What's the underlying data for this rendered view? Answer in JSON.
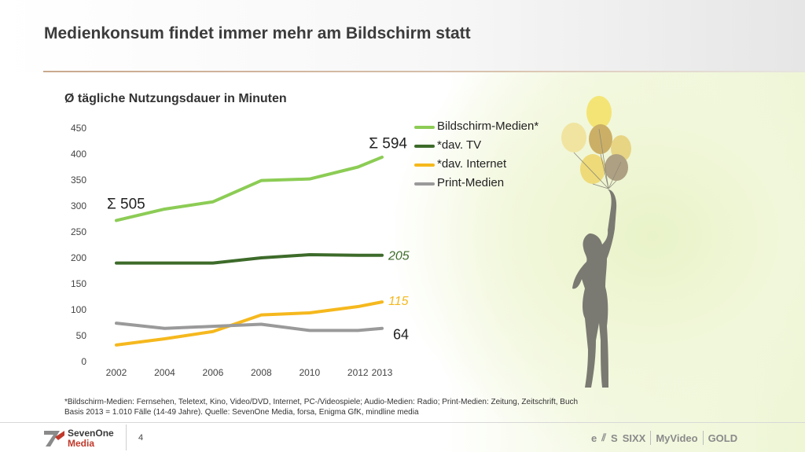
{
  "page": {
    "title": "Medienkonsum findet immer mehr am Bildschirm statt",
    "subtitle": "Ø tägliche Nutzungsdauer in Minuten",
    "footnote_line1": "*Bildschirm-Medien: Fernsehen, Teletext, Kino, Video/DVD, Internet, PC-/Videospiele; Audio-Medien: Radio; Print-Medien: Zeitung, Zeitschrift, Buch",
    "footnote_line2": "Basis 2013 = 1.010 Fälle (14-49 Jahre). Quelle: SevenOne Media, forsa, Enigma GfK, mindline media",
    "page_number": "4"
  },
  "footer": {
    "logo_line1": "SevenOne",
    "logo_line2": "Media",
    "brands": [
      "e",
      "⫽",
      "S",
      "SIXX",
      "MyVideo",
      "GOLD"
    ]
  },
  "chart_data": {
    "type": "line",
    "title": "Ø tägliche Nutzungsdauer in Minuten",
    "x": [
      2002,
      2004,
      2006,
      2008,
      2010,
      2012,
      2013
    ],
    "ylim": [
      0,
      450
    ],
    "yticks": [
      0,
      50,
      100,
      150,
      200,
      250,
      300,
      350,
      400,
      450
    ],
    "xticks": [
      "2002",
      "2004",
      "2006",
      "2008",
      "2010",
      "2012",
      "2013"
    ],
    "grid": false,
    "legend_position": "top-right",
    "series": [
      {
        "name": "Bildschirm-Medien*",
        "color": "#8ccc55",
        "values": [
          272,
          294,
          308,
          349,
          352,
          375,
          394
        ]
      },
      {
        "name": "*dav. TV",
        "color": "#3d6b2a",
        "values": [
          190,
          190,
          190,
          200,
          206,
          205,
          205
        ]
      },
      {
        "name": "*dav. Internet",
        "color": "#f5b81d",
        "values": [
          32,
          44,
          58,
          90,
          94,
          106,
          115
        ]
      },
      {
        "name": "Print-Medien",
        "color": "#9a9a9a",
        "values": [
          74,
          64,
          68,
          72,
          60,
          60,
          64
        ]
      }
    ],
    "annotations": [
      {
        "text": "Σ 505",
        "x": 2002,
        "y": 305,
        "style": "sum"
      },
      {
        "text": "Σ 594",
        "x": 2013,
        "y": 422,
        "style": "sum"
      },
      {
        "text": "205",
        "x": 2013,
        "y": 205,
        "style": "end-label",
        "color": "#3d6b2a"
      },
      {
        "text": "115",
        "x": 2013,
        "y": 118,
        "style": "end-label",
        "color": "#f5b81d"
      },
      {
        "text": "64",
        "x": 2013,
        "y": 52,
        "style": "end-value",
        "color": "#222222"
      }
    ]
  }
}
